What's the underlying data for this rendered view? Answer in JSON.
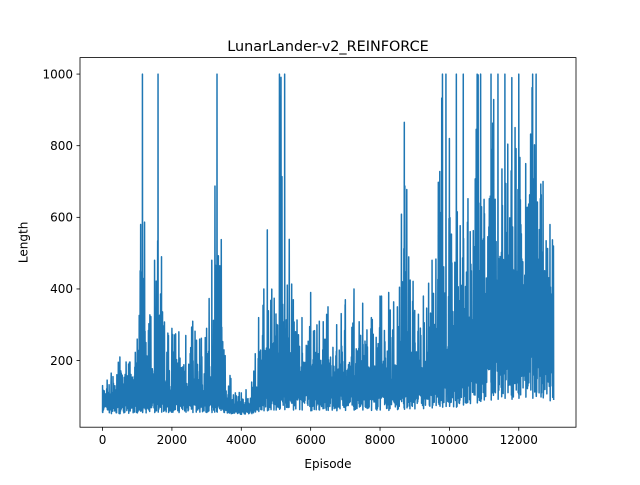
{
  "chart_data": {
    "type": "line",
    "title": "LunarLander-v2_REINFORCE",
    "xlabel": "Episode",
    "ylabel": "Length",
    "xlim": [
      -650,
      13650
    ],
    "ylim": [
      14,
      1046
    ],
    "xticks": [
      0,
      2000,
      4000,
      6000,
      8000,
      10000,
      12000
    ],
    "yticks": [
      200,
      400,
      600,
      800,
      1000
    ],
    "xtick_labels": [
      "0",
      "2000",
      "4000",
      "6000",
      "8000",
      "10000",
      "12000"
    ],
    "ytick_labels": [
      "200",
      "400",
      "600",
      "800",
      "1000"
    ],
    "grid": false,
    "series": [
      {
        "color": "#1f77b4",
        "x": [
          0,
          250,
          500,
          750,
          1000,
          1150,
          1250,
          1500,
          1600,
          1700,
          1900,
          2000,
          2200,
          2400,
          2600,
          2800,
          3000,
          3150,
          3300,
          3500,
          3700,
          4000,
          4300,
          4500,
          4650,
          4750,
          5000,
          5100,
          5250,
          5500,
          5750,
          6000,
          6250,
          6500,
          6750,
          7000,
          7250,
          7500,
          7750,
          8000,
          8250,
          8500,
          8700,
          9000,
          9250,
          9500,
          9800,
          9900,
          10000,
          10200,
          10400,
          10600,
          10800,
          10900,
          11000,
          11200,
          11400,
          11600,
          11800,
          12000,
          12200,
          12400,
          12500,
          12700,
          12900,
          13000
        ],
        "max": [
          130,
          165,
          210,
          190,
          260,
          1000,
          250,
          480,
          1000,
          490,
          270,
          290,
          280,
          270,
          310,
          260,
          290,
          480,
          1000,
          230,
          150,
          110,
          140,
          320,
          400,
          565,
          330,
          1000,
          1000,
          370,
          320,
          390,
          310,
          350,
          300,
          370,
          400,
          360,
          320,
          380,
          390,
          350,
          865,
          340,
          380,
          480,
          1000,
          1000,
          820,
          1000,
          1000,
          560,
          1000,
          1000,
          650,
          1000,
          1000,
          1000,
          990,
          1000,
          750,
          1000,
          1000,
          700,
          580,
          520
        ],
        "min": [
          55,
          52,
          52,
          53,
          54,
          55,
          54,
          55,
          56,
          56,
          55,
          56,
          55,
          56,
          55,
          56,
          55,
          55,
          56,
          55,
          52,
          50,
          52,
          58,
          60,
          60,
          62,
          64,
          63,
          62,
          62,
          60,
          62,
          61,
          60,
          61,
          62,
          62,
          61,
          62,
          61,
          63,
          64,
          65,
          66,
          68,
          70,
          72,
          72,
          70,
          76,
          80,
          82,
          86,
          90,
          90,
          92,
          95,
          92,
          95,
          98,
          95,
          100,
          96,
          88,
          90
        ],
        "typical": [
          95,
          100,
          100,
          105,
          105,
          110,
          105,
          110,
          115,
          110,
          105,
          110,
          105,
          110,
          105,
          110,
          100,
          110,
          100,
          90,
          75,
          65,
          70,
          115,
          135,
          150,
          140,
          150,
          150,
          140,
          145,
          150,
          145,
          145,
          140,
          140,
          140,
          135,
          135,
          140,
          140,
          145,
          150,
          150,
          160,
          170,
          180,
          190,
          200,
          210,
          230,
          250,
          270,
          280,
          290,
          300,
          320,
          330,
          330,
          320,
          330,
          340,
          340,
          330,
          320,
          340
        ]
      }
    ]
  }
}
